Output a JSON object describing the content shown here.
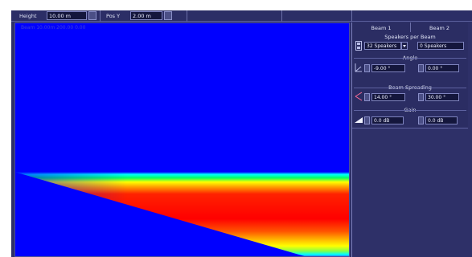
{
  "toolbar": {
    "height_label": "Height",
    "height_value": "10.00 m",
    "posy_label": "Pos Y",
    "posy_value": "2.00 m"
  },
  "plot": {
    "readout": "Beam 10.00m 200.00 0.00"
  },
  "panel": {
    "beam1_label": "Beam 1",
    "beam2_label": "Beam 2",
    "speakers_title": "Speakers per Beam",
    "speakers_beam1": "32 Speakers",
    "speakers_beam2": "0 Speakers",
    "angle_title": "Angle",
    "angle_beam1": "-9.00 °",
    "angle_beam2": "0.00 °",
    "spreading_title": "Beam Spreading",
    "spreading_beam1": "14.00 °",
    "spreading_beam2": "30.00 °",
    "gain_title": "Gain",
    "gain_beam1": "0.0 dB",
    "gain_beam2": "0.0 dB"
  },
  "colors": {
    "background": "#0000ff",
    "panel": "#2e3068",
    "heatmap_core": "#ff0000",
    "heatmap_edge_warm": "#ffff00",
    "heatmap_edge_cool": "#00ffff"
  },
  "icons": {
    "speakers": "speaker-array-icon",
    "angle": "angle-icon",
    "spreading": "spread-icon",
    "gain": "gain-wedge-icon"
  }
}
